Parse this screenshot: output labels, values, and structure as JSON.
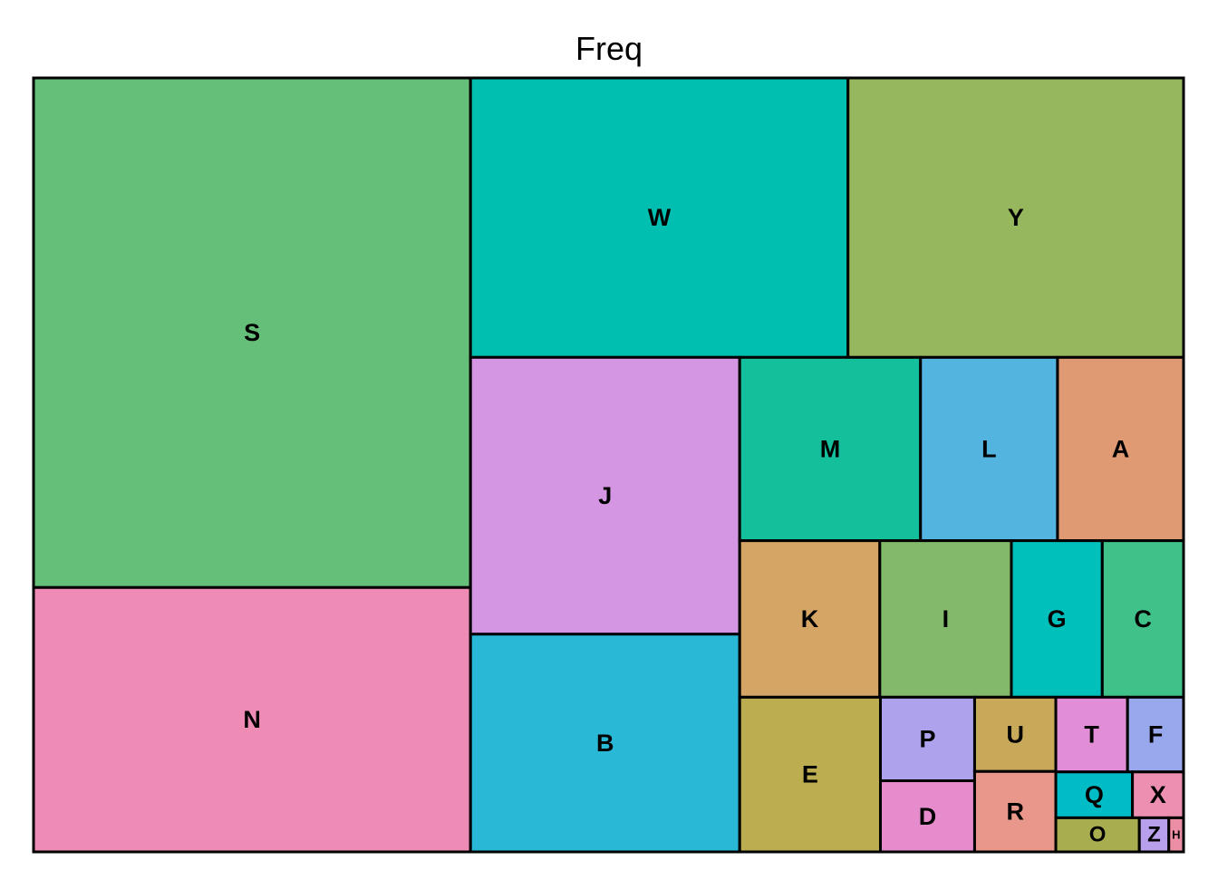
{
  "chart_data": {
    "type": "treemap",
    "title": "Freq",
    "items": [
      {
        "label": "S",
        "value": 133.0,
        "color": "#66BF79"
      },
      {
        "label": "N",
        "value": 69.0,
        "color": "#EE8CB6"
      },
      {
        "label": "W",
        "value": 63.0,
        "color": "#00BFB0"
      },
      {
        "label": "Y",
        "value": 56.0,
        "color": "#96B75E"
      },
      {
        "label": "J",
        "value": 44.5,
        "color": "#D496E2"
      },
      {
        "label": "B",
        "value": 35.0,
        "color": "#2AB8D7"
      },
      {
        "label": "M",
        "value": 19.8,
        "color": "#14C09C"
      },
      {
        "label": "L",
        "value": 15.0,
        "color": "#54B4E0"
      },
      {
        "label": "A",
        "value": 13.8,
        "color": "#DF9A74"
      },
      {
        "label": "K",
        "value": 13.1,
        "color": "#D5A565"
      },
      {
        "label": "I",
        "value": 12.3,
        "color": "#83B96A"
      },
      {
        "label": "G",
        "value": 8.5,
        "color": "#00C0BC"
      },
      {
        "label": "C",
        "value": 7.6,
        "color": "#40C18A"
      },
      {
        "label": "E",
        "value": 13.0,
        "color": "#BBAD50"
      },
      {
        "label": "P",
        "value": 4.7,
        "color": "#AFA2EC"
      },
      {
        "label": "D",
        "value": 4.0,
        "color": "#E68CCD"
      },
      {
        "label": "U",
        "value": 3.6,
        "color": "#C8A95A"
      },
      {
        "label": "R",
        "value": 3.9,
        "color": "#E8978A"
      },
      {
        "label": "T",
        "value": 3.2,
        "color": "#E18ED6"
      },
      {
        "label": "F",
        "value": 2.5,
        "color": "#98A8EC"
      },
      {
        "label": "Q",
        "value": 2.1,
        "color": "#00BCC7"
      },
      {
        "label": "X",
        "value": 1.4,
        "color": "#ED8FB0"
      },
      {
        "label": "O",
        "value": 1.7,
        "color": "#A8AE4F"
      },
      {
        "label": "Z",
        "value": 0.6,
        "color": "#B9A0EC"
      },
      {
        "label": "H",
        "value": 0.3,
        "color": "#ED8FA4"
      }
    ]
  }
}
